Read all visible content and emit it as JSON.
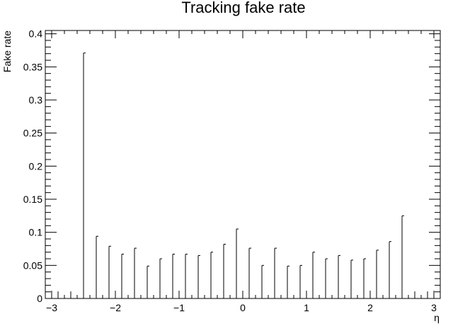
{
  "chart_data": {
    "type": "scatter",
    "title": "Tracking fake rate",
    "xlabel": "η",
    "ylabel": "Fake rate",
    "xlim": [
      -3.1,
      3.1
    ],
    "ylim": [
      0,
      0.405
    ],
    "grid": false,
    "legend": "none",
    "x_ticks": [
      -3,
      -2,
      -1,
      0,
      1,
      2,
      3
    ],
    "x_tick_labels": [
      "−3",
      "−2",
      "−1",
      "0",
      "1",
      "2",
      "3"
    ],
    "y_ticks": [
      0,
      0.05,
      0.1,
      0.15,
      0.2,
      0.25,
      0.3,
      0.35,
      0.4
    ],
    "y_tick_labels": [
      "0",
      "0.05",
      "0.1",
      "0.15",
      "0.2",
      "0.25",
      "0.3",
      "0.35",
      "0.4"
    ],
    "series": [
      {
        "x": [
          -2.9,
          -2.7,
          -2.5,
          -2.3,
          -2.1,
          -1.9,
          -1.7,
          -1.5,
          -1.3,
          -1.1,
          -0.9,
          -0.7,
          -0.5,
          -0.3,
          -0.1,
          0.1,
          0.3,
          0.5,
          0.7,
          0.9,
          1.1,
          1.3,
          1.5,
          1.7,
          1.9,
          2.1,
          2.3,
          2.5,
          2.7,
          2.9
        ],
        "y": [
          0,
          0,
          0.368,
          0.091,
          0.076,
          0.064,
          0.073,
          0.046,
          0.057,
          0.064,
          0.064,
          0.062,
          0.067,
          0.079,
          0.102,
          0.073,
          0.047,
          0.073,
          0.046,
          0.047,
          0.067,
          0.057,
          0.062,
          0.055,
          0.057,
          0.07,
          0.083,
          0.122,
          0,
          0
        ],
        "err": [
          0,
          0,
          0.003,
          0.003,
          0.003,
          0.003,
          0.003,
          0.003,
          0.003,
          0.003,
          0.003,
          0.003,
          0.003,
          0.003,
          0.003,
          0.003,
          0.003,
          0.003,
          0.003,
          0.003,
          0.003,
          0.003,
          0.003,
          0.003,
          0.003,
          0.003,
          0.003,
          0.003,
          0,
          0
        ]
      }
    ]
  }
}
